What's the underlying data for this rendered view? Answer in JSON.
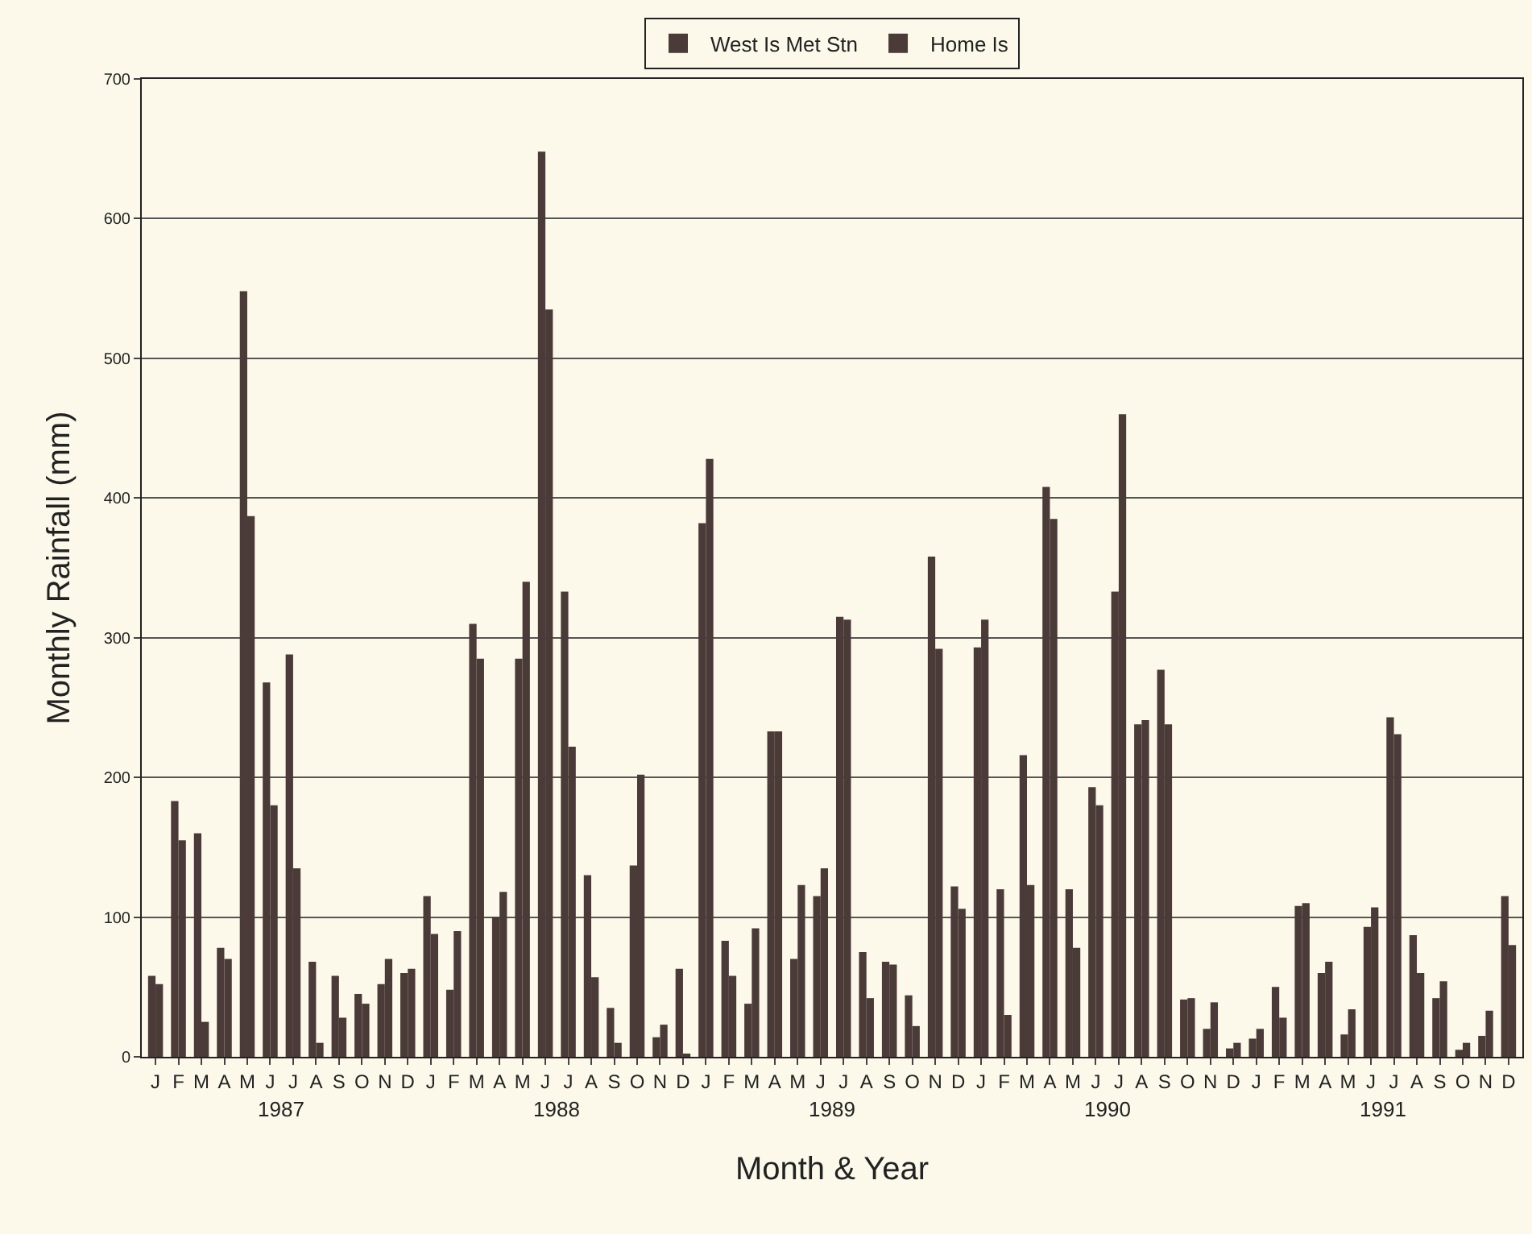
{
  "chart_data": {
    "type": "bar",
    "xlabel": "Month & Year",
    "ylabel": "Monthly Rainfall (mm)",
    "categories": [
      "J",
      "F",
      "M",
      "A",
      "M",
      "J",
      "J",
      "A",
      "S",
      "O",
      "N",
      "D",
      "J",
      "F",
      "M",
      "A",
      "M",
      "J",
      "J",
      "A",
      "S",
      "O",
      "N",
      "D",
      "J",
      "F",
      "M",
      "A",
      "M",
      "J",
      "J",
      "A",
      "S",
      "O",
      "N",
      "D",
      "J",
      "F",
      "M",
      "A",
      "M",
      "J",
      "J",
      "A",
      "S",
      "O",
      "N",
      "D",
      "J",
      "F",
      "M",
      "A",
      "M",
      "J",
      "J",
      "A",
      "S",
      "O",
      "N",
      "D"
    ],
    "series": [
      {
        "name": "West Is Met Stn",
        "color": "#4a3a38",
        "values": [
          58,
          183,
          160,
          78,
          548,
          268,
          288,
          68,
          58,
          45,
          52,
          60,
          115,
          48,
          310,
          100,
          285,
          648,
          333,
          130,
          35,
          137,
          14,
          63,
          382,
          83,
          38,
          233,
          70,
          115,
          315,
          75,
          68,
          44,
          358,
          122,
          293,
          120,
          216,
          408,
          120,
          193,
          333,
          238,
          277,
          41,
          20,
          6,
          13,
          50,
          108,
          60,
          16,
          93,
          243,
          87,
          42,
          5,
          15,
          115
        ]
      },
      {
        "name": "Home Is",
        "color": "#4a3a38",
        "values": [
          52,
          155,
          25,
          70,
          387,
          180,
          135,
          10,
          28,
          38,
          70,
          63,
          88,
          90,
          285,
          118,
          340,
          535,
          222,
          57,
          10,
          202,
          23,
          2,
          428,
          58,
          92,
          233,
          123,
          135,
          313,
          42,
          66,
          22,
          292,
          106,
          313,
          30,
          123,
          385,
          78,
          180,
          460,
          241,
          238,
          42,
          39,
          10,
          20,
          28,
          110,
          68,
          34,
          107,
          231,
          60,
          54,
          10,
          33,
          80
        ]
      }
    ],
    "annotations": [
      "1987",
      "1988",
      "1989",
      "1990",
      "1991"
    ],
    "ylim": [
      0,
      700
    ],
    "yticks": [
      0,
      100,
      200,
      300,
      400,
      500,
      600,
      700
    ],
    "grid": "y",
    "legend": "top"
  }
}
